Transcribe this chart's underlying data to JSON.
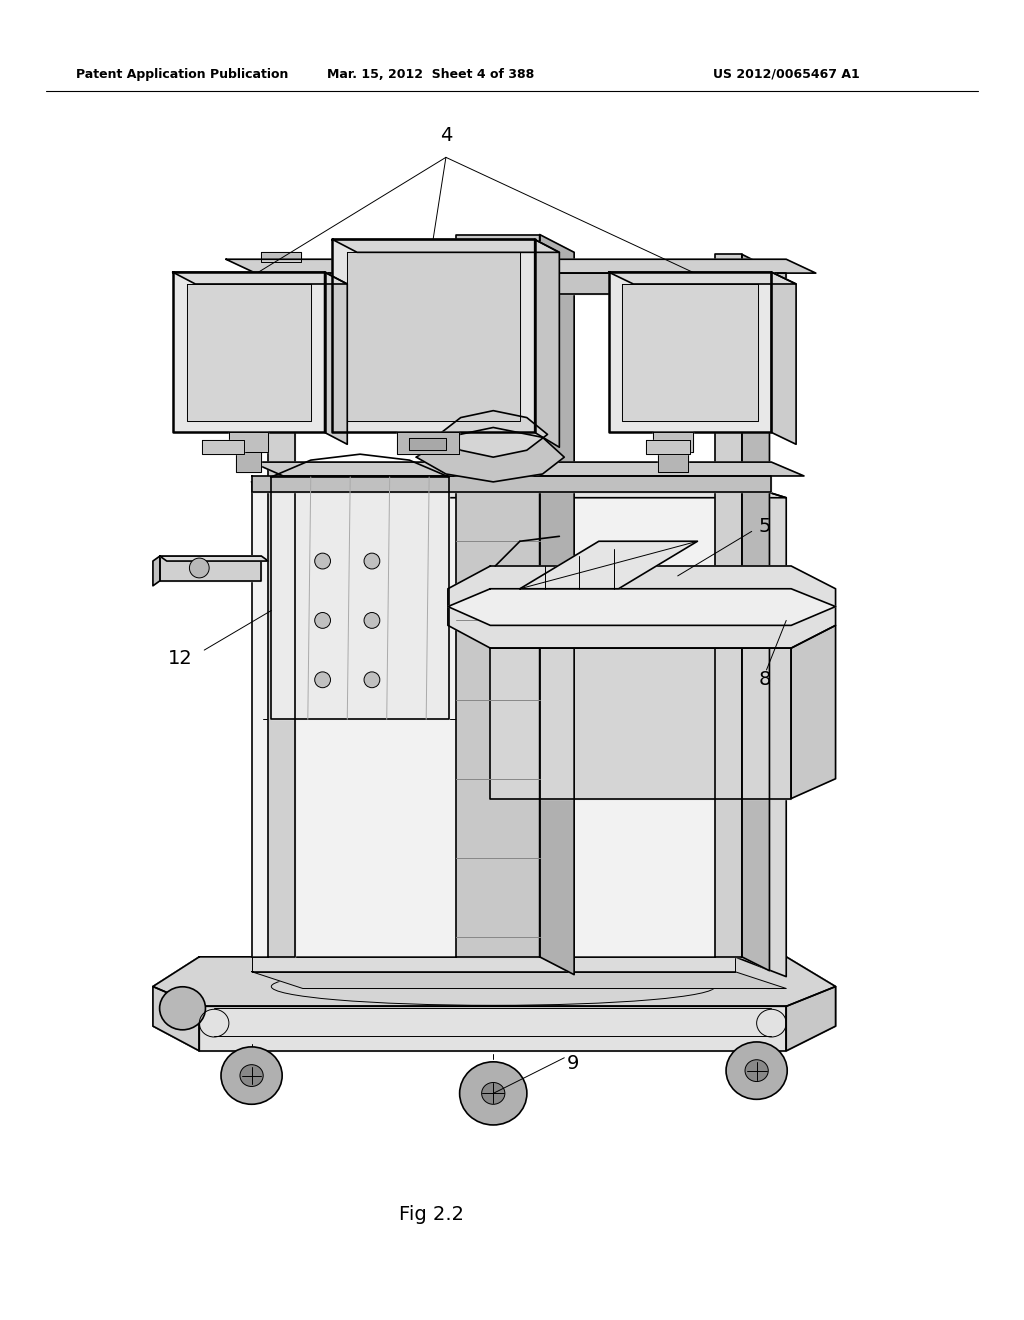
{
  "bg_color": "#ffffff",
  "header_left": "Patent Application Publication",
  "header_mid": "Mar. 15, 2012  Sheet 4 of 388",
  "header_right": "US 2012/0065467 A1",
  "caption": "Fig 2.2",
  "line_color": "#000000",
  "fig_width": 10.24,
  "fig_height": 13.2
}
